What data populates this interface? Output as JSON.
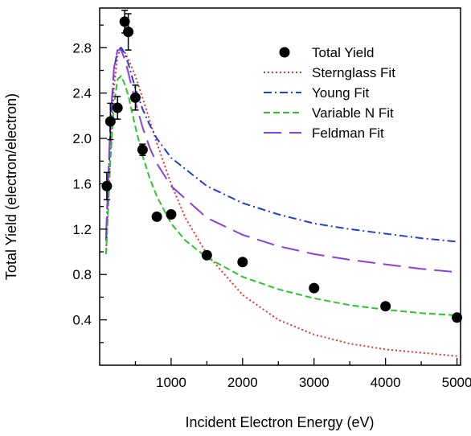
{
  "chart_data": {
    "type": "scatter",
    "title": "",
    "xlabel": "Incident Electron Energy (eV)",
    "ylabel": "Total Yield (electron/electron)",
    "xlim": [
      0,
      5050
    ],
    "ylim": [
      0,
      3.15
    ],
    "x_ticks": [
      1000,
      2000,
      3000,
      4000,
      5000
    ],
    "x_tick_labels": [
      "1000",
      "2000",
      "3000",
      "4000",
      "5000"
    ],
    "y_ticks": [
      0.4,
      0.8,
      1.2,
      1.6,
      2.0,
      2.4,
      2.8
    ],
    "y_tick_labels": [
      "0.4",
      "0.8",
      "1.2",
      "1.6",
      "2.0",
      "2.4",
      "2.8"
    ],
    "grid": false,
    "legend_position": "top-right",
    "scatter_series": {
      "name": "Total Yield",
      "color": "#000000",
      "points": [
        {
          "x": 100,
          "y": 1.58,
          "err": 0.12
        },
        {
          "x": 150,
          "y": 2.15,
          "err": 0.16
        },
        {
          "x": 250,
          "y": 2.27,
          "err": 0.1
        },
        {
          "x": 350,
          "y": 3.03,
          "err": 0.1
        },
        {
          "x": 400,
          "y": 2.94,
          "err": 0.16
        },
        {
          "x": 500,
          "y": 2.36,
          "err": 0.11
        },
        {
          "x": 600,
          "y": 1.9,
          "err": 0.05
        },
        {
          "x": 800,
          "y": 1.31,
          "err": 0
        },
        {
          "x": 1000,
          "y": 1.33,
          "err": 0
        },
        {
          "x": 1500,
          "y": 0.97,
          "err": 0
        },
        {
          "x": 2000,
          "y": 0.91,
          "err": 0
        },
        {
          "x": 3000,
          "y": 0.68,
          "err": 0
        },
        {
          "x": 4000,
          "y": 0.52,
          "err": 0
        },
        {
          "x": 5000,
          "y": 0.42,
          "err": 0
        }
      ]
    },
    "series": [
      {
        "name": "Sternglass Fit",
        "color": "#e8322a",
        "dash": "2,3",
        "x": [
          90,
          150,
          200,
          250,
          300,
          350,
          400,
          500,
          600,
          700,
          800,
          1000,
          1200,
          1500,
          2000,
          2500,
          3000,
          3500,
          4000,
          4500,
          5000
        ],
        "values": [
          0.98,
          1.9,
          2.45,
          2.72,
          2.8,
          2.76,
          2.7,
          2.55,
          2.36,
          2.16,
          1.96,
          1.6,
          1.3,
          0.98,
          0.62,
          0.4,
          0.27,
          0.19,
          0.14,
          0.11,
          0.08
        ]
      },
      {
        "name": "Young Fit",
        "color": "#1f3fd6",
        "dash": "10,4,2,4",
        "x": [
          90,
          150,
          200,
          250,
          300,
          350,
          400,
          500,
          600,
          700,
          800,
          1000,
          1500,
          2000,
          2500,
          3000,
          3500,
          4000,
          4500,
          5000
        ],
        "values": [
          1.1,
          2.05,
          2.6,
          2.78,
          2.8,
          2.75,
          2.66,
          2.44,
          2.26,
          2.12,
          2.0,
          1.83,
          1.58,
          1.43,
          1.33,
          1.25,
          1.2,
          1.16,
          1.12,
          1.09
        ]
      },
      {
        "name": "Variable N Fit",
        "color": "#2bc52b",
        "dash": "8,4",
        "x": [
          90,
          150,
          200,
          250,
          300,
          350,
          400,
          500,
          600,
          700,
          800,
          1000,
          1200,
          1500,
          2000,
          2500,
          3000,
          3500,
          4000,
          4500,
          5000
        ],
        "values": [
          0.98,
          1.8,
          2.3,
          2.52,
          2.55,
          2.48,
          2.38,
          2.1,
          1.85,
          1.65,
          1.49,
          1.25,
          1.1,
          0.95,
          0.78,
          0.67,
          0.59,
          0.53,
          0.49,
          0.46,
          0.44
        ]
      },
      {
        "name": "Feldman Fit",
        "color": "#8a3fe0",
        "dash": "22,10",
        "x": [
          90,
          150,
          200,
          250,
          300,
          350,
          400,
          500,
          600,
          700,
          800,
          1000,
          1500,
          2000,
          2500,
          3000,
          3500,
          4000,
          4500,
          5000
        ],
        "values": [
          1.15,
          2.15,
          2.62,
          2.78,
          2.78,
          2.7,
          2.58,
          2.32,
          2.1,
          1.92,
          1.78,
          1.58,
          1.3,
          1.15,
          1.05,
          0.98,
          0.93,
          0.89,
          0.85,
          0.82
        ]
      }
    ]
  }
}
